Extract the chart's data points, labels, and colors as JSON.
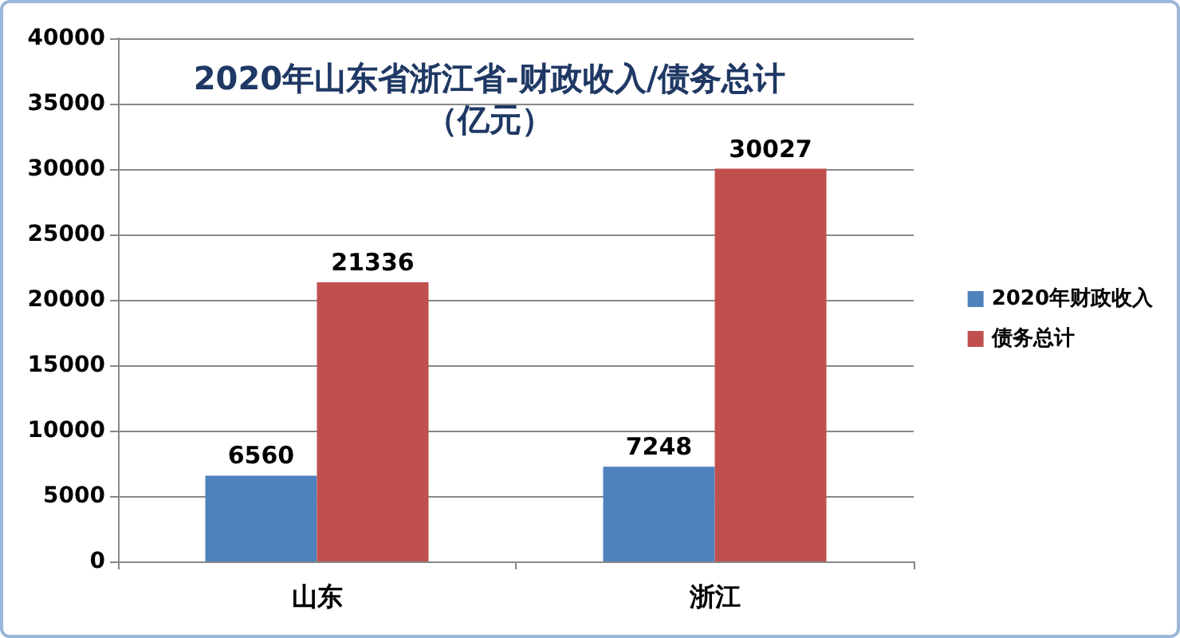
{
  "chart_data": {
    "type": "bar",
    "title": "2020年山东省浙江省-财政收入/债务总计",
    "subtitle": "（亿元）",
    "categories": [
      "山东",
      "浙江"
    ],
    "series": [
      {
        "name": "2020年财政收入",
        "color": "#4f81bd",
        "values": [
          6560,
          7248
        ]
      },
      {
        "name": "债务总计",
        "color": "#c0504d",
        "values": [
          21336,
          30027
        ]
      }
    ],
    "ylim": [
      0,
      40000
    ],
    "yticks": [
      0,
      5000,
      10000,
      15000,
      20000,
      25000,
      30000,
      35000,
      40000
    ],
    "grid": "y",
    "legend": "right",
    "data_labels": true
  }
}
